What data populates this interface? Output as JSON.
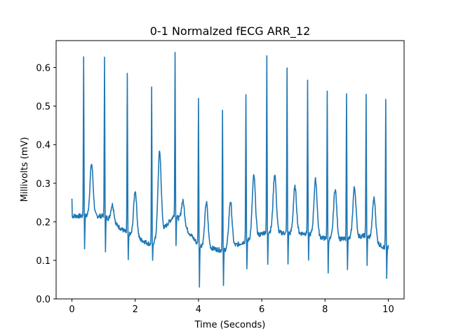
{
  "chart_data": {
    "type": "line",
    "title": "0-1 Normalzed fECG ARR_12",
    "xlabel": "Time (Seconds)",
    "ylabel": "Millivolts (mV)",
    "xlim": [
      -0.5,
      10.5
    ],
    "ylim": [
      0.0,
      0.67
    ],
    "xticks": [
      0,
      2,
      4,
      6,
      8,
      10
    ],
    "yticks": [
      0.0,
      0.1,
      0.2,
      0.3,
      0.4,
      0.5,
      0.6
    ],
    "xtick_labels": [
      "0",
      "2",
      "4",
      "6",
      "8",
      "10"
    ],
    "ytick_labels": [
      "0.0",
      "0.1",
      "0.2",
      "0.3",
      "0.4",
      "0.5",
      "0.6"
    ],
    "grid": false,
    "color": "#1f77b4",
    "beats": [
      {
        "t": 0.37,
        "peak": 0.63,
        "trough": 0.13,
        "twave": 0.35,
        "base": 0.215
      },
      {
        "t": 1.03,
        "peak": 0.63,
        "trough": 0.12,
        "twave": 0.26,
        "base": 0.215
      },
      {
        "t": 1.75,
        "peak": 0.58,
        "trough": 0.1,
        "twave": 0.29,
        "base": 0.17
      },
      {
        "t": 2.52,
        "peak": 0.545,
        "trough": 0.09,
        "twave": 0.355,
        "base": 0.14
      },
      {
        "t": 3.26,
        "peak": 0.64,
        "trough": 0.145,
        "twave": 0.28,
        "base": 0.22
      },
      {
        "t": 4.0,
        "peak": 0.525,
        "trough": 0.035,
        "twave": 0.255,
        "base": 0.14
      },
      {
        "t": 4.76,
        "peak": 0.495,
        "trough": 0.03,
        "twave": 0.245,
        "base": 0.125
      },
      {
        "t": 5.5,
        "peak": 0.535,
        "trough": 0.07,
        "twave": 0.31,
        "base": 0.15
      },
      {
        "t": 6.16,
        "peak": 0.63,
        "trough": 0.09,
        "twave": 0.325,
        "base": 0.175
      },
      {
        "t": 6.8,
        "peak": 0.595,
        "trough": 0.09,
        "twave": 0.29,
        "base": 0.17
      },
      {
        "t": 7.45,
        "peak": 0.565,
        "trough": 0.1,
        "twave": 0.315,
        "base": 0.17
      },
      {
        "t": 8.07,
        "peak": 0.54,
        "trough": 0.07,
        "twave": 0.285,
        "base": 0.155
      },
      {
        "t": 8.68,
        "peak": 0.535,
        "trough": 0.08,
        "twave": 0.285,
        "base": 0.155
      },
      {
        "t": 9.3,
        "peak": 0.535,
        "trough": 0.09,
        "twave": 0.275,
        "base": 0.165
      },
      {
        "t": 9.92,
        "peak": 0.515,
        "trough": 0.055,
        "twave": 0.14,
        "base": 0.13
      }
    ],
    "start": {
      "t": 0.0,
      "value": 0.26
    },
    "end": {
      "t": 10.0,
      "value": 0.14
    }
  }
}
